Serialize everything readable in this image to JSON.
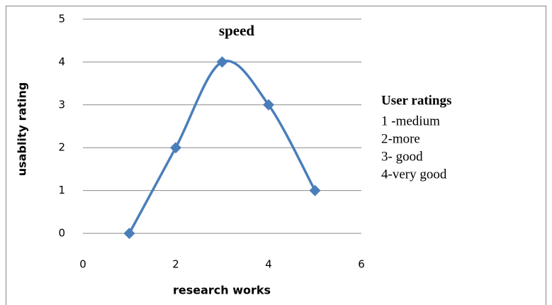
{
  "chart_data": {
    "type": "line",
    "title": "speed",
    "x_label": "research works",
    "y_label": "usablity rating",
    "x": [
      1,
      2,
      3,
      4,
      5
    ],
    "series": [
      {
        "color": "#4a7ebb",
        "values": [
          0,
          2,
          4,
          3,
          1
        ]
      }
    ],
    "smooth": true,
    "marker": "diamond",
    "xlim": [
      0,
      6
    ],
    "xticks": [
      0,
      2,
      4,
      6
    ],
    "ylim": [
      0,
      5
    ],
    "yticks": [
      0,
      1,
      2,
      3,
      4,
      5
    ],
    "grid": true,
    "annotation": {
      "title": "User ratings",
      "lines": [
        "1 -medium",
        "2-more",
        "3- good",
        "4-very good"
      ]
    }
  }
}
